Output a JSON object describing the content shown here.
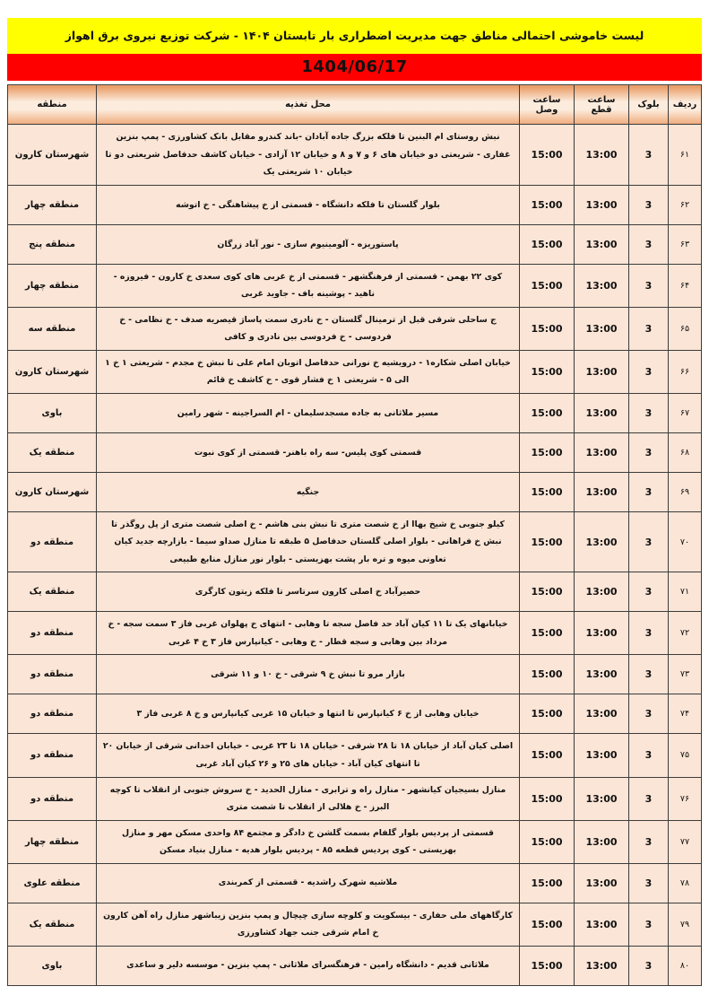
{
  "page": {
    "title_banner": "لیست خاموشی احتمالی مناطق جهت مدیریت اضطراری بار تابستان ۱۴۰۴ - شرکت توزیع نیروی برق اهواز",
    "date_banner": "1404/06/17"
  },
  "colors": {
    "banner_yellow": "#FFFF00",
    "banner_red": "#FF0000",
    "row_background": "#FBE5D6",
    "header_gradient_dark": "#E8975E",
    "header_gradient_light": "#FCECDD",
    "border": "#3C3C3C"
  },
  "table": {
    "columns": {
      "row": "ردیف",
      "block": "بلوک",
      "cut": "ساعت قطع",
      "reconnect": "ساعت وصل",
      "location": "محل تغذیه",
      "region": "منطقه"
    },
    "rows": [
      {
        "row": "۶۱",
        "block": "3",
        "cut": "13:00",
        "reconnect": "15:00",
        "location": "نبش روستای ام البنین تا فلکه بزرگ جاده آبادان -باند کندرو مقابل بانک کشاورزی - پمپ بنزین غفاری - شریعتی دو خیابان های ۶ و ۷ و ۸ و خیابان ۱۲ آزادی - خیابان کاشف حدفاصل شریعتی دو تا خیابان ۱۰ شریعتی یک",
        "region": "شهرستان کارون"
      },
      {
        "row": "۶۲",
        "block": "3",
        "cut": "13:00",
        "reconnect": "15:00",
        "location": "بلوار گلستان تا فلکه دانشگاه - قسمتی از خ پیشاهنگی - خ اتوشه",
        "region": "منطقه چهار"
      },
      {
        "row": "۶۳",
        "block": "3",
        "cut": "13:00",
        "reconnect": "15:00",
        "location": "پاستوریزه - آلومینیوم سازی - نور آباد زرگان",
        "region": "منطقه پنج"
      },
      {
        "row": "۶۴",
        "block": "3",
        "cut": "13:00",
        "reconnect": "15:00",
        "location": "کوی ۲۲ بهمن - قسمتی از فرهنگشهر - قسمتی از خ غربی های کوی سعدی خ کارون - فیروزه - ناهید - پوشینه باف - جاوید غربی",
        "region": "منطقه چهار"
      },
      {
        "row": "۶۵",
        "block": "3",
        "cut": "13:00",
        "reconnect": "15:00",
        "location": "ج ساحلی شرقی قبل از ترمینال گلستان - خ نادری سمت پاساژ قیصریه صدف - خ نظامی - خ فردوسی - خ فردوسی بین نادری و کافی",
        "region": "منطقه سه"
      },
      {
        "row": "۶۶",
        "block": "3",
        "cut": "13:00",
        "reconnect": "15:00",
        "location": "خیابان اصلی شکاره۱ - درویشیه خ نورانی حدفاصل اتوبان امام علی تا نبش خ مجدم - شریعتی ۱ خ ۱ الی ۵ - شریعتی ۱ خ فشار قوی - خ کاشف خ قائم",
        "region": "شهرستان کارون"
      },
      {
        "row": "۶۷",
        "block": "3",
        "cut": "13:00",
        "reconnect": "15:00",
        "location": "مسیر ملاثانی به جاده مسجدسلیمان - ام السراجینه - شهر رامین",
        "region": "باوی"
      },
      {
        "row": "۶۸",
        "block": "3",
        "cut": "13:00",
        "reconnect": "15:00",
        "location": "قسمتی کوی پلیس- سه راه باهنر- قسمتی از کوی نبوت",
        "region": "منطقه یک"
      },
      {
        "row": "۶۹",
        "block": "3",
        "cut": "13:00",
        "reconnect": "15:00",
        "location": "جنگیه",
        "region": "شهرستان کارون"
      },
      {
        "row": "۷۰",
        "block": "3",
        "cut": "13:00",
        "reconnect": "15:00",
        "location": "کیلو جنوبی خ شیخ بهاا از خ شصت متری تا نبش بنی هاشم - خ اصلی شصت متری از پل روگذر تا نبش خ فراهانی - بلوار اصلی گلستان حدفاصل ۵ طبقه تا منازل صداو سیما - بازارچه جدید کیان تعاونی میوه و تره بار پشت بهزیستی - بلوار نور منازل منابع طبیعی",
        "region": "منطقه دو"
      },
      {
        "row": "۷۱",
        "block": "3",
        "cut": "13:00",
        "reconnect": "15:00",
        "location": "حصیرآباد خ اصلی کارون سرتاسر تا فلکه زیتون کارگری",
        "region": "منطقه یک"
      },
      {
        "row": "۷۲",
        "block": "3",
        "cut": "13:00",
        "reconnect": "15:00",
        "location": "خیابانهای یک تا ۱۱ کیان آباد حد فاصل سجه تا وهابی - انتهای خ پهلوان غربی فاز ۳ سمت سجه - خ مرداد بین وهابی و سجه قطار - خ وهابی - کیانپارس فاز ۳ خ ۴ غربی",
        "region": "منطقه دو"
      },
      {
        "row": "۷۳",
        "block": "3",
        "cut": "13:00",
        "reconnect": "15:00",
        "location": "بازار مرو تا نبش خ ۹ شرقی - خ ۱۰ و ۱۱ شرقی",
        "region": "منطقه دو"
      },
      {
        "row": "۷۴",
        "block": "3",
        "cut": "13:00",
        "reconnect": "15:00",
        "location": "خیابان وهابی از خ ۶ کیانپارس تا انتها و خیابان ۱۵ غربی کیانپارس و خ ۸ غربی فاز ۳",
        "region": "منطقه دو"
      },
      {
        "row": "۷۵",
        "block": "3",
        "cut": "13:00",
        "reconnect": "15:00",
        "location": "اصلی کیان آباد از خیابان ۱۸ تا ۲۸ شرقی - خیابان ۱۸ تا ۲۳ غربی - خیابان احدانی شرقی از خیابان ۲۰ تا انتهای کیان آباد - خیابان های ۲۵ و ۲۶ کیان آباد غربی",
        "region": "منطقه دو"
      },
      {
        "row": "۷۶",
        "block": "3",
        "cut": "13:00",
        "reconnect": "15:00",
        "location": "منازل بسیجیان کیانشهر - منازل راه و ترابری - منازل الحدید - خ سروش جنوبی از انقلاب تا کوچه البرز - خ هلالی از انقلاب تا شصت متری",
        "region": "منطقه دو"
      },
      {
        "row": "۷۷",
        "block": "3",
        "cut": "13:00",
        "reconnect": "15:00",
        "location": "قسمتی از پردیس بلوار گلفام بسمت گلشن خ دادگر و مجتمع ۸۴ واحدی مسکن مهر و منازل بهزیستی - کوی پردیس قطعه ۸۵ - پردیس بلوار هدیه - منازل بنیاد مسکن",
        "region": "منطقه چهار"
      },
      {
        "row": "۷۸",
        "block": "3",
        "cut": "13:00",
        "reconnect": "15:00",
        "location": "ملاشیه شهرک راشدیه - قسمتی از کمربندی",
        "region": "منطقه علوی"
      },
      {
        "row": "۷۹",
        "block": "3",
        "cut": "13:00",
        "reconnect": "15:00",
        "location": "کارگاههای ملی حفاری - بیسکویت و کلوچه سازی چیچال و پمپ بنزین زیباشهر منازل راه آهن کارون خ امام شرقی جنب جهاد کشاورزی",
        "region": "منطقه یک"
      },
      {
        "row": "۸۰",
        "block": "3",
        "cut": "13:00",
        "reconnect": "15:00",
        "location": "ملاثانی قدیم - دانشگاه رامین - فرهنگسرای ملاثانی - پمپ بنزین - موسسه دلیر و ساعدی",
        "region": "باوی"
      }
    ]
  }
}
